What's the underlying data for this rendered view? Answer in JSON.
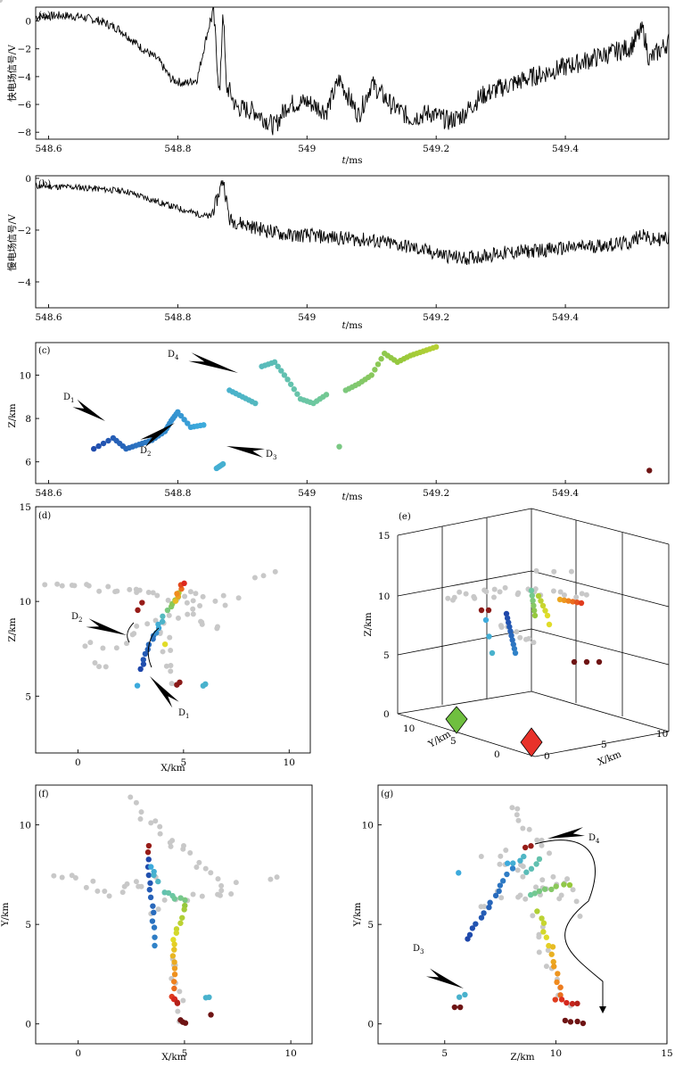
{
  "panels": [
    {
      "id": "a",
      "label": "(a)"
    },
    {
      "id": "b",
      "label": "(b)"
    },
    {
      "id": "c",
      "label": "(c)"
    },
    {
      "id": "d",
      "label": "(d)"
    },
    {
      "id": "e",
      "label": "(e)"
    },
    {
      "id": "f",
      "label": "(f)"
    },
    {
      "id": "g",
      "label": "(g)"
    }
  ],
  "annotations": {
    "D1": "D",
    "D1_sub": "1",
    "D2": "D",
    "D2_sub": "2",
    "D3": "D",
    "D3_sub": "3",
    "D4": "D",
    "D4_sub": "4"
  },
  "colors": {
    "background_points": "#c8c8c8",
    "marker_green": "#6fbf3f",
    "marker_red": "#e8322a"
  },
  "chart_data": [
    {
      "id": "a",
      "type": "line",
      "xlabel_t": "t",
      "xlabel_unit": "/ms",
      "ylabel": "快电场信号/V",
      "xticks": [
        "548.6",
        "548.8",
        "549",
        "549.2",
        "549.4"
      ],
      "xtick_values": [
        548.6,
        548.8,
        549.0,
        549.2,
        549.4
      ],
      "yticks": [
        "0",
        "−2",
        "−4",
        "−6",
        "−8"
      ],
      "ytick_values": [
        0,
        -2,
        -4,
        -6,
        -8
      ],
      "xlim": [
        548.58,
        549.56
      ],
      "ylim": [
        -8.5,
        1.0
      ],
      "x": [
        548.58,
        548.62,
        548.65,
        548.68,
        548.71,
        548.74,
        548.77,
        548.79,
        548.81,
        548.83,
        548.845,
        548.855,
        548.865,
        548.87,
        548.875,
        548.88,
        548.89,
        548.92,
        548.95,
        548.97,
        549.0,
        549.03,
        549.05,
        549.08,
        549.1,
        549.13,
        549.16,
        549.19,
        549.22,
        549.24,
        549.27,
        549.3,
        549.35,
        549.4,
        549.45,
        549.5,
        549.52,
        549.53,
        549.56
      ],
      "y": [
        0.3,
        0.4,
        0.3,
        0.0,
        -0.6,
        -1.8,
        -2.8,
        -4.2,
        -4.5,
        -4.2,
        -1.0,
        0.8,
        -5.5,
        1.2,
        -4.8,
        -5.0,
        -6.2,
        -6.5,
        -7.6,
        -6.0,
        -5.8,
        -6.5,
        -4.2,
        -6.8,
        -4.5,
        -6.0,
        -7.0,
        -6.6,
        -7.2,
        -6.8,
        -5.4,
        -4.8,
        -4.0,
        -3.3,
        -2.6,
        -1.9,
        -0.6,
        -2.8,
        -1.5
      ]
    },
    {
      "id": "b",
      "type": "line",
      "xlabel_t": "t",
      "xlabel_unit": "/ms",
      "ylabel": "慢电场信号/V",
      "xticks": [
        "548.6",
        "548.8",
        "549",
        "549.2",
        "549.4"
      ],
      "xtick_values": [
        548.6,
        548.8,
        549.0,
        549.2,
        549.4
      ],
      "yticks": [
        "0",
        "−2",
        "−4"
      ],
      "ytick_values": [
        0,
        -2,
        -4
      ],
      "xlim": [
        548.58,
        549.56
      ],
      "ylim": [
        -5.0,
        0.1
      ],
      "x": [
        548.58,
        548.65,
        548.72,
        548.78,
        548.82,
        548.85,
        548.86,
        548.87,
        548.88,
        548.92,
        548.97,
        549.0,
        549.05,
        549.1,
        549.15,
        549.2,
        549.24,
        549.27,
        549.3,
        549.35,
        549.4,
        549.45,
        549.5,
        549.52,
        549.53,
        549.56
      ],
      "y": [
        -0.3,
        -0.35,
        -0.5,
        -1.0,
        -1.3,
        -1.5,
        -0.9,
        0.0,
        -1.6,
        -1.9,
        -2.2,
        -2.2,
        -2.3,
        -2.4,
        -2.6,
        -2.9,
        -3.1,
        -3.0,
        -2.9,
        -2.8,
        -2.7,
        -2.6,
        -2.5,
        -2.1,
        -2.4,
        -2.3
      ]
    },
    {
      "id": "c",
      "type": "scatter",
      "xlabel_t": "t",
      "xlabel_unit": "/ms",
      "ylabel": "Z/km",
      "xticks": [
        "548.6",
        "548.8",
        "549",
        "549.2",
        "549.4"
      ],
      "xtick_values": [
        548.6,
        548.8,
        549.0,
        549.2,
        549.4
      ],
      "yticks": [
        "6",
        "8",
        "10"
      ],
      "ytick_values": [
        6,
        8,
        10
      ],
      "xlim": [
        548.58,
        549.56
      ],
      "ylim": [
        5.0,
        11.5
      ],
      "color_by": "time (blue → green → yellow → red)",
      "points": [
        [
          548.67,
          6.6
        ],
        [
          548.7,
          7.1
        ],
        [
          548.72,
          6.6
        ],
        [
          548.74,
          6.8
        ],
        [
          548.76,
          7.0
        ],
        [
          548.78,
          7.4
        ],
        [
          548.79,
          7.9
        ],
        [
          548.8,
          8.3
        ],
        [
          548.82,
          7.6
        ],
        [
          548.84,
          7.7
        ],
        [
          548.86,
          5.7
        ],
        [
          548.87,
          5.9
        ],
        [
          548.88,
          9.3
        ],
        [
          548.9,
          9.0
        ],
        [
          548.92,
          8.7
        ],
        [
          548.93,
          10.4
        ],
        [
          548.95,
          10.6
        ],
        [
          548.97,
          9.8
        ],
        [
          548.99,
          8.9
        ],
        [
          549.01,
          8.7
        ],
        [
          549.03,
          9.1
        ],
        [
          549.05,
          6.7
        ],
        [
          549.06,
          9.3
        ],
        [
          549.08,
          9.6
        ],
        [
          549.1,
          10.0
        ],
        [
          549.12,
          11.0
        ],
        [
          549.14,
          10.6
        ],
        [
          549.16,
          10.9
        ],
        [
          549.18,
          11.1
        ],
        [
          549.2,
          11.3
        ],
        [
          549.53,
          5.6
        ]
      ]
    },
    {
      "id": "d",
      "type": "scatter",
      "xlabel": "X/km",
      "ylabel": "Z/km",
      "xticks": [
        "0",
        "5",
        "10"
      ],
      "xtick_values": [
        0,
        5,
        10
      ],
      "yticks": [
        "5",
        "10",
        "15"
      ],
      "ytick_values": [
        5,
        10,
        15
      ],
      "xlim": [
        -2,
        11
      ],
      "ylim": [
        2,
        15
      ]
    },
    {
      "id": "e",
      "type": "scatter",
      "xlabel": "X/km",
      "ylabel": "Z/km",
      "zlabel": "Y/km",
      "zticks": [
        "0",
        "5",
        "10",
        "15"
      ],
      "yticks": [
        "10",
        "5",
        "0"
      ],
      "xticks": [
        "0",
        "5",
        "10"
      ]
    },
    {
      "id": "f",
      "type": "scatter",
      "xlabel": "X/km",
      "ylabel": "Y/km",
      "xticks": [
        "0",
        "5",
        "10"
      ],
      "xtick_values": [
        0,
        5,
        10
      ],
      "yticks": [
        "0",
        "5",
        "10"
      ],
      "ytick_values": [
        0,
        5,
        10
      ],
      "xlim": [
        -2,
        11
      ],
      "ylim": [
        -1,
        12
      ]
    },
    {
      "id": "g",
      "type": "scatter",
      "xlabel": "Z/km",
      "ylabel": "Y/km",
      "xticks": [
        "5",
        "10",
        "15"
      ],
      "xtick_values": [
        5,
        10,
        15
      ],
      "yticks": [
        "0",
        "5",
        "10"
      ],
      "ytick_values": [
        0,
        5,
        10
      ],
      "xlim": [
        2,
        15
      ],
      "ylim": [
        -1,
        12
      ]
    }
  ]
}
